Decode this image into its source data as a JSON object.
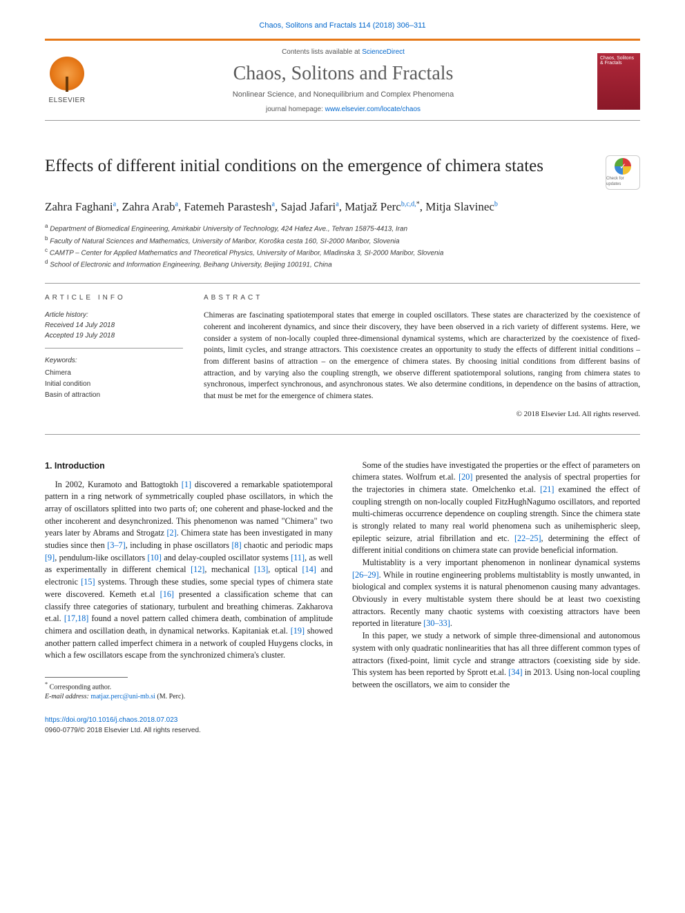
{
  "header_citation": "Chaos, Solitons and Fractals 114 (2018) 306–311",
  "masthead": {
    "publisher": "ELSEVIER",
    "contents_prefix": "Contents lists available at ",
    "contents_link": "ScienceDirect",
    "journal": "Chaos, Solitons and Fractals",
    "subtitle": "Nonlinear Science, and Nonequilibrium and Complex Phenomena",
    "homepage_prefix": "journal homepage: ",
    "homepage_link": "www.elsevier.com/locate/chaos",
    "cover_title": "Chaos, Solitons & Fractals"
  },
  "title": "Effects of different initial conditions on the emergence of chimera states",
  "crossmark_label": "Check for updates",
  "authors_html": "Zahra Faghani<sup>a</sup>, Zahra Arab<sup>a</sup>, Fatemeh Parastesh<sup>a</sup>, Sajad Jafari<sup>a</sup>, Matjaž Perc<sup>b,c,d,</sup><sup class='star'>*</sup>, Mitja Slavinec<sup>b</sup>",
  "affiliations": [
    "Department of Biomedical Engineering, Amirkabir University of Technology, 424 Hafez Ave., Tehran 15875-4413, Iran",
    "Faculty of Natural Sciences and Mathematics, University of Maribor, Koroška cesta 160, SI-2000 Maribor, Slovenia",
    "CAMTP – Center for Applied Mathematics and Theoretical Physics, University of Maribor, Mladinska 3, SI-2000 Maribor, Slovenia",
    "School of Electronic and Information Engineering, Beihang University, Beijing 100191, China"
  ],
  "aff_markers": [
    "a",
    "b",
    "c",
    "d"
  ],
  "info": {
    "head": "ARTICLE INFO",
    "history_head": "Article history:",
    "received": "Received 14 July 2018",
    "accepted": "Accepted 19 July 2018",
    "keywords_head": "Keywords:",
    "keywords": [
      "Chimera",
      "Initial condition",
      "Basin of attraction"
    ]
  },
  "abstract": {
    "head": "ABSTRACT",
    "text": "Chimeras are fascinating spatiotemporal states that emerge in coupled oscillators. These states are characterized by the coexistence of coherent and incoherent dynamics, and since their discovery, they have been observed in a rich variety of different systems. Here, we consider a system of non-locally coupled three-dimensional dynamical systems, which are characterized by the coexistence of fixed-points, limit cycles, and strange attractors. This coexistence creates an opportunity to study the effects of different initial conditions – from different basins of attraction – on the emergence of chimera states. By choosing initial conditions from different basins of attraction, and by varying also the coupling strength, we observe different spatiotemporal solutions, ranging from chimera states to synchronous, imperfect synchronous, and asynchronous states. We also determine conditions, in dependence on the basins of attraction, that must be met for the emergence of chimera states.",
    "copyright": "© 2018 Elsevier Ltd. All rights reserved."
  },
  "intro": {
    "head": "1. Introduction",
    "p1": "In 2002, Kuramoto and Battogtokh [1] discovered a remarkable spatiotemporal pattern in a ring network of symmetrically coupled phase oscillators, in which the array of oscillators splitted into two parts of; one coherent and phase-locked and the other incoherent and desynchronized. This phenomenon was named \"Chimera\" two years later by Abrams and Strogatz [2]. Chimera state has been investigated in many studies since then [3–7], including in phase oscillators [8] chaotic and periodic maps [9], pendulum-like oscillators [10] and delay-coupled oscillator systems [11], as well as experimentally in different chemical [12], mechanical [13], optical [14] and electronic [15] systems. Through these studies, some special types of chimera state were discovered. Kemeth et.al [16] presented a classification scheme that can classify three categories of stationary, turbulent and breathing chimeras. Zakharova et.al. [17,18] found a novel pattern called chimera death, combination of amplitude chimera and oscillation death, in dynamical networks. Kapitaniak et.al. [19] showed another pattern called imperfect chimera in a network of coupled Huygens clocks, in which a few oscillators escape from the synchronized chimera's cluster.",
    "p2": "Some of the studies have investigated the properties or the effect of parameters on chimera states. Wolfrum et.al. [20] presented the analysis of spectral properties for the trajectories in chimera state. Omelchenko et.al. [21] examined the effect of coupling strength on non-locally coupled FitzHughNagumo oscillators, and reported multi-chimeras occurrence dependence on coupling strength. Since the chimera state is strongly related to many real world phenomena such as unihemispheric sleep, epileptic seizure, atrial fibrillation and etc. [22–25], determining the effect of different initial conditions on chimera state can provide beneficial information.",
    "p3": "Multistablity is a very important phenomenon in nonlinear dynamical systems [26–29]. While in routine engineering problems multistablity is mostly unwanted, in biological and complex systems it is natural phenomenon causing many advantages. Obviously in every multistable system there should be at least two coexisting attractors. Recently many chaotic systems with coexisting attractors have been reported in literature [30–33].",
    "p4": "In this paper, we study a network of simple three-dimensional and autonomous system with only quadratic nonlinearities that has all three different common types of attractors (fixed-point, limit cycle and strange attractors (coexisting side by side. This system has been reported by Sprott et.al. [34] in 2013. Using non-local coupling between the oscillators, we aim to consider the"
  },
  "footnote": {
    "corr": "Corresponding author.",
    "email_label": "E-mail address:",
    "email": "matjaz.perc@uni-mb.si",
    "email_person": "(M. Perc)."
  },
  "footer": {
    "doi": "https://doi.org/10.1016/j.chaos.2018.07.023",
    "issn_copy": "0960-0779/© 2018 Elsevier Ltd. All rights reserved."
  },
  "colors": {
    "link": "#0066cc",
    "accent": "#e67817",
    "text": "#1a1a1a",
    "cover": "#8a1828"
  }
}
